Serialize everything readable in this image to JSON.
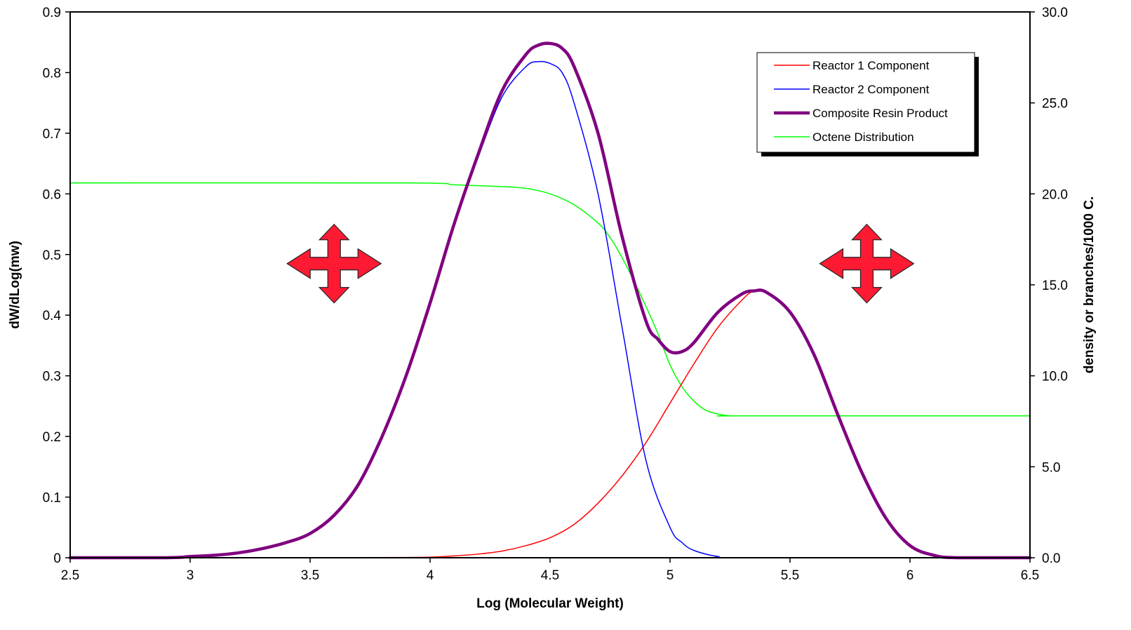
{
  "chart_data": {
    "type": "line",
    "title": "",
    "xlabel": "Log (Molecular Weight)",
    "ylabel": "dW/dLog(mw)",
    "y2label": "density or branches/1000 C.",
    "xlim": [
      2.5,
      6.5
    ],
    "ylim": [
      0,
      0.9
    ],
    "y2lim": [
      0,
      30
    ],
    "x_ticks": [
      "2.5",
      "3",
      "3.5",
      "4",
      "4.5",
      "5",
      "5.5",
      "6",
      "6.5"
    ],
    "y_ticks": [
      "0",
      "0.1",
      "0.2",
      "0.3",
      "0.4",
      "0.5",
      "0.6",
      "0.7",
      "0.8",
      "0.9"
    ],
    "y2_ticks": [
      "0.0",
      "5.0",
      "10.0",
      "15.0",
      "20.0",
      "25.0",
      "30.0"
    ],
    "grid": false,
    "legend_position": "top-right",
    "series": [
      {
        "name": "Reactor 1 Component",
        "axis": "left",
        "color": "#ff0000",
        "x": [
          2.5,
          3.5,
          3.9,
          4.0,
          4.1,
          4.2,
          4.3,
          4.4,
          4.5,
          4.6,
          4.7,
          4.8,
          4.9,
          5.0,
          5.1,
          5.2,
          5.3,
          5.35,
          5.4,
          5.5,
          5.6,
          5.7,
          5.8,
          5.9,
          6.0,
          6.1,
          6.2,
          6.5
        ],
        "y": [
          0,
          0,
          0.0005,
          0.001,
          0.003,
          0.006,
          0.011,
          0.02,
          0.033,
          0.055,
          0.09,
          0.135,
          0.19,
          0.255,
          0.32,
          0.38,
          0.425,
          0.44,
          0.438,
          0.405,
          0.335,
          0.235,
          0.14,
          0.065,
          0.02,
          0.004,
          0,
          0
        ]
      },
      {
        "name": "Reactor 2 Component",
        "axis": "left",
        "color": "#0000ff",
        "x": [
          2.5,
          2.9,
          3.0,
          3.1,
          3.2,
          3.3,
          3.4,
          3.5,
          3.6,
          3.7,
          3.8,
          3.9,
          4.0,
          4.1,
          4.2,
          4.3,
          4.4,
          4.45,
          4.5,
          4.55,
          4.6,
          4.7,
          4.8,
          4.9,
          5.0,
          5.05,
          5.1,
          5.2,
          5.3,
          6.5
        ],
        "y": [
          0,
          0,
          0.002,
          0.004,
          0.008,
          0.015,
          0.025,
          0.04,
          0.07,
          0.12,
          0.2,
          0.3,
          0.42,
          0.55,
          0.66,
          0.76,
          0.81,
          0.818,
          0.815,
          0.8,
          0.75,
          0.6,
          0.38,
          0.16,
          0.05,
          0.025,
          0.012,
          0.002,
          0,
          0
        ]
      },
      {
        "name": "Composite Resin Product",
        "axis": "left",
        "color": "#800080",
        "x": [
          2.5,
          2.9,
          3.0,
          3.1,
          3.2,
          3.3,
          3.4,
          3.5,
          3.6,
          3.7,
          3.8,
          3.9,
          4.0,
          4.1,
          4.2,
          4.3,
          4.4,
          4.45,
          4.5,
          4.55,
          4.6,
          4.7,
          4.8,
          4.9,
          4.95,
          5.0,
          5.05,
          5.1,
          5.2,
          5.3,
          5.35,
          5.4,
          5.5,
          5.6,
          5.7,
          5.8,
          5.9,
          6.0,
          6.1,
          6.2,
          6.5
        ],
        "y": [
          0,
          0,
          0.002,
          0.004,
          0.008,
          0.015,
          0.025,
          0.04,
          0.07,
          0.12,
          0.2,
          0.3,
          0.42,
          0.55,
          0.665,
          0.77,
          0.83,
          0.845,
          0.848,
          0.84,
          0.81,
          0.7,
          0.53,
          0.39,
          0.36,
          0.34,
          0.34,
          0.355,
          0.405,
          0.435,
          0.44,
          0.438,
          0.405,
          0.335,
          0.235,
          0.14,
          0.065,
          0.02,
          0.004,
          0,
          0
        ]
      },
      {
        "name": "Octene Distribution",
        "axis": "right",
        "color": "#00ff00",
        "x": [
          2.5,
          3.9,
          4.1,
          4.3,
          4.4,
          4.5,
          4.6,
          4.7,
          4.75,
          4.8,
          4.85,
          4.9,
          4.95,
          5.0,
          5.05,
          5.1,
          5.15,
          5.2,
          5.25,
          5.3,
          6.5
        ],
        "y": [
          20.6,
          20.6,
          20.5,
          20.4,
          20.3,
          20.0,
          19.4,
          18.4,
          17.6,
          16.5,
          15.2,
          13.8,
          12.3,
          10.6,
          9.4,
          8.6,
          8.1,
          7.9,
          7.8,
          7.8,
          7.8
        ]
      }
    ],
    "annotations": [
      {
        "type": "move-arrows-icon",
        "x": 3.6,
        "y": 0.485,
        "color": "#ff1a33"
      },
      {
        "type": "move-arrows-icon",
        "x": 5.82,
        "y": 0.485,
        "color": "#ff1a33"
      }
    ]
  }
}
